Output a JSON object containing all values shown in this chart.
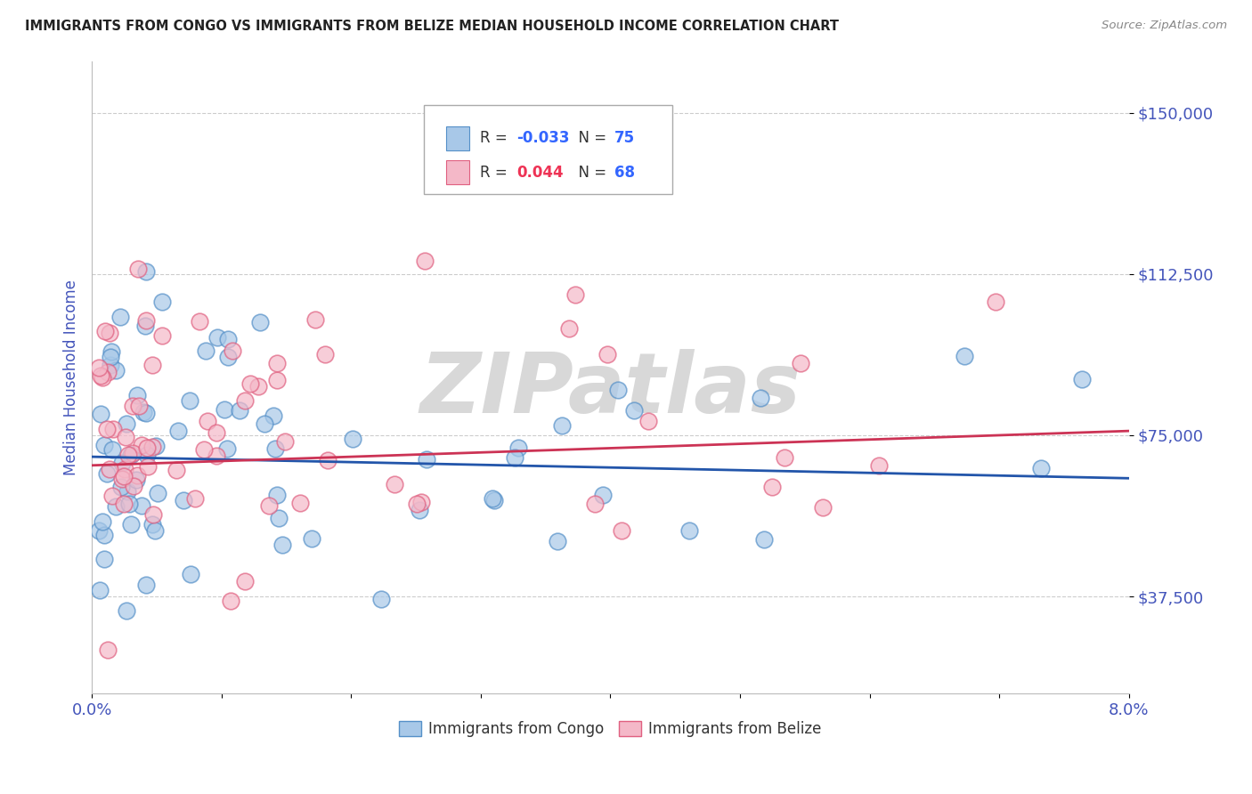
{
  "title": "IMMIGRANTS FROM CONGO VS IMMIGRANTS FROM BELIZE MEDIAN HOUSEHOLD INCOME CORRELATION CHART",
  "source": "Source: ZipAtlas.com",
  "ylabel": "Median Household Income",
  "xlim": [
    0.0,
    0.08
  ],
  "ylim": [
    15000,
    162000
  ],
  "yticks": [
    37500,
    75000,
    112500,
    150000
  ],
  "ytick_labels": [
    "$37,500",
    "$75,000",
    "$112,500",
    "$150,000"
  ],
  "xtick_positions": [
    0.0,
    0.01,
    0.02,
    0.03,
    0.04,
    0.05,
    0.06,
    0.07,
    0.08
  ],
  "xtick_labels": [
    "0.0%",
    "",
    "",
    "",
    "",
    "",
    "",
    "",
    "8.0%"
  ],
  "congo_R": -0.033,
  "congo_N": 75,
  "belize_R": 0.044,
  "belize_N": 68,
  "congo_color": "#a8c8e8",
  "belize_color": "#f4b8c8",
  "congo_edge_color": "#5590c8",
  "belize_edge_color": "#e06080",
  "congo_line_color": "#2255aa",
  "belize_line_color": "#cc3355",
  "background_color": "#ffffff",
  "grid_color": "#cccccc",
  "title_color": "#222222",
  "axis_label_color": "#4455bb",
  "tick_label_color": "#4455bb",
  "watermark_color": "#d8d8d8",
  "watermark_text": "ZIPatlas",
  "legend_R_color_congo": "#3366ff",
  "legend_R_color_belize": "#ee3355",
  "legend_N_color": "#3366ff"
}
